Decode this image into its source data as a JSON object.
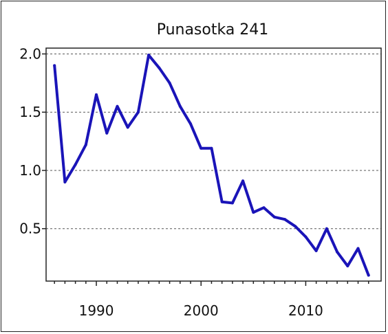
{
  "chart_data": {
    "type": "line",
    "title": "Punasotka 241",
    "xlabel": "",
    "ylabel": "",
    "xlim": [
      1985.2,
      2017.2
    ],
    "ylim": [
      0.05,
      2.05
    ],
    "grid": "horizontal dashed",
    "line_color": "#1a14b8",
    "x_ticks": [
      1990,
      2000,
      2010
    ],
    "y_ticks": [
      2.0,
      1.5,
      1.0,
      0.5
    ],
    "x_tick_labels": [
      "1990",
      "2000",
      "2010"
    ],
    "y_tick_labels": [
      "2.0",
      "1.5",
      "1.0",
      "0.5"
    ],
    "series": [
      {
        "x": [
          1986,
          1987,
          1988,
          1989,
          1990,
          1991,
          1992,
          1993,
          1994,
          1995,
          1996,
          1997,
          1998,
          1999,
          2000,
          2001,
          2002,
          2003,
          2004,
          2005,
          2006,
          2007,
          2008,
          2009,
          2010,
          2011,
          2012,
          2013,
          2014,
          2015,
          2016
        ],
        "values": [
          1.9,
          0.9,
          1.05,
          1.22,
          1.65,
          1.32,
          1.55,
          1.37,
          1.5,
          1.99,
          1.88,
          1.75,
          1.55,
          1.4,
          1.19,
          1.19,
          0.73,
          0.72,
          0.91,
          0.64,
          0.68,
          0.6,
          0.58,
          0.52,
          0.43,
          0.31,
          0.5,
          0.3,
          0.18,
          0.33,
          0.1
        ]
      }
    ]
  }
}
